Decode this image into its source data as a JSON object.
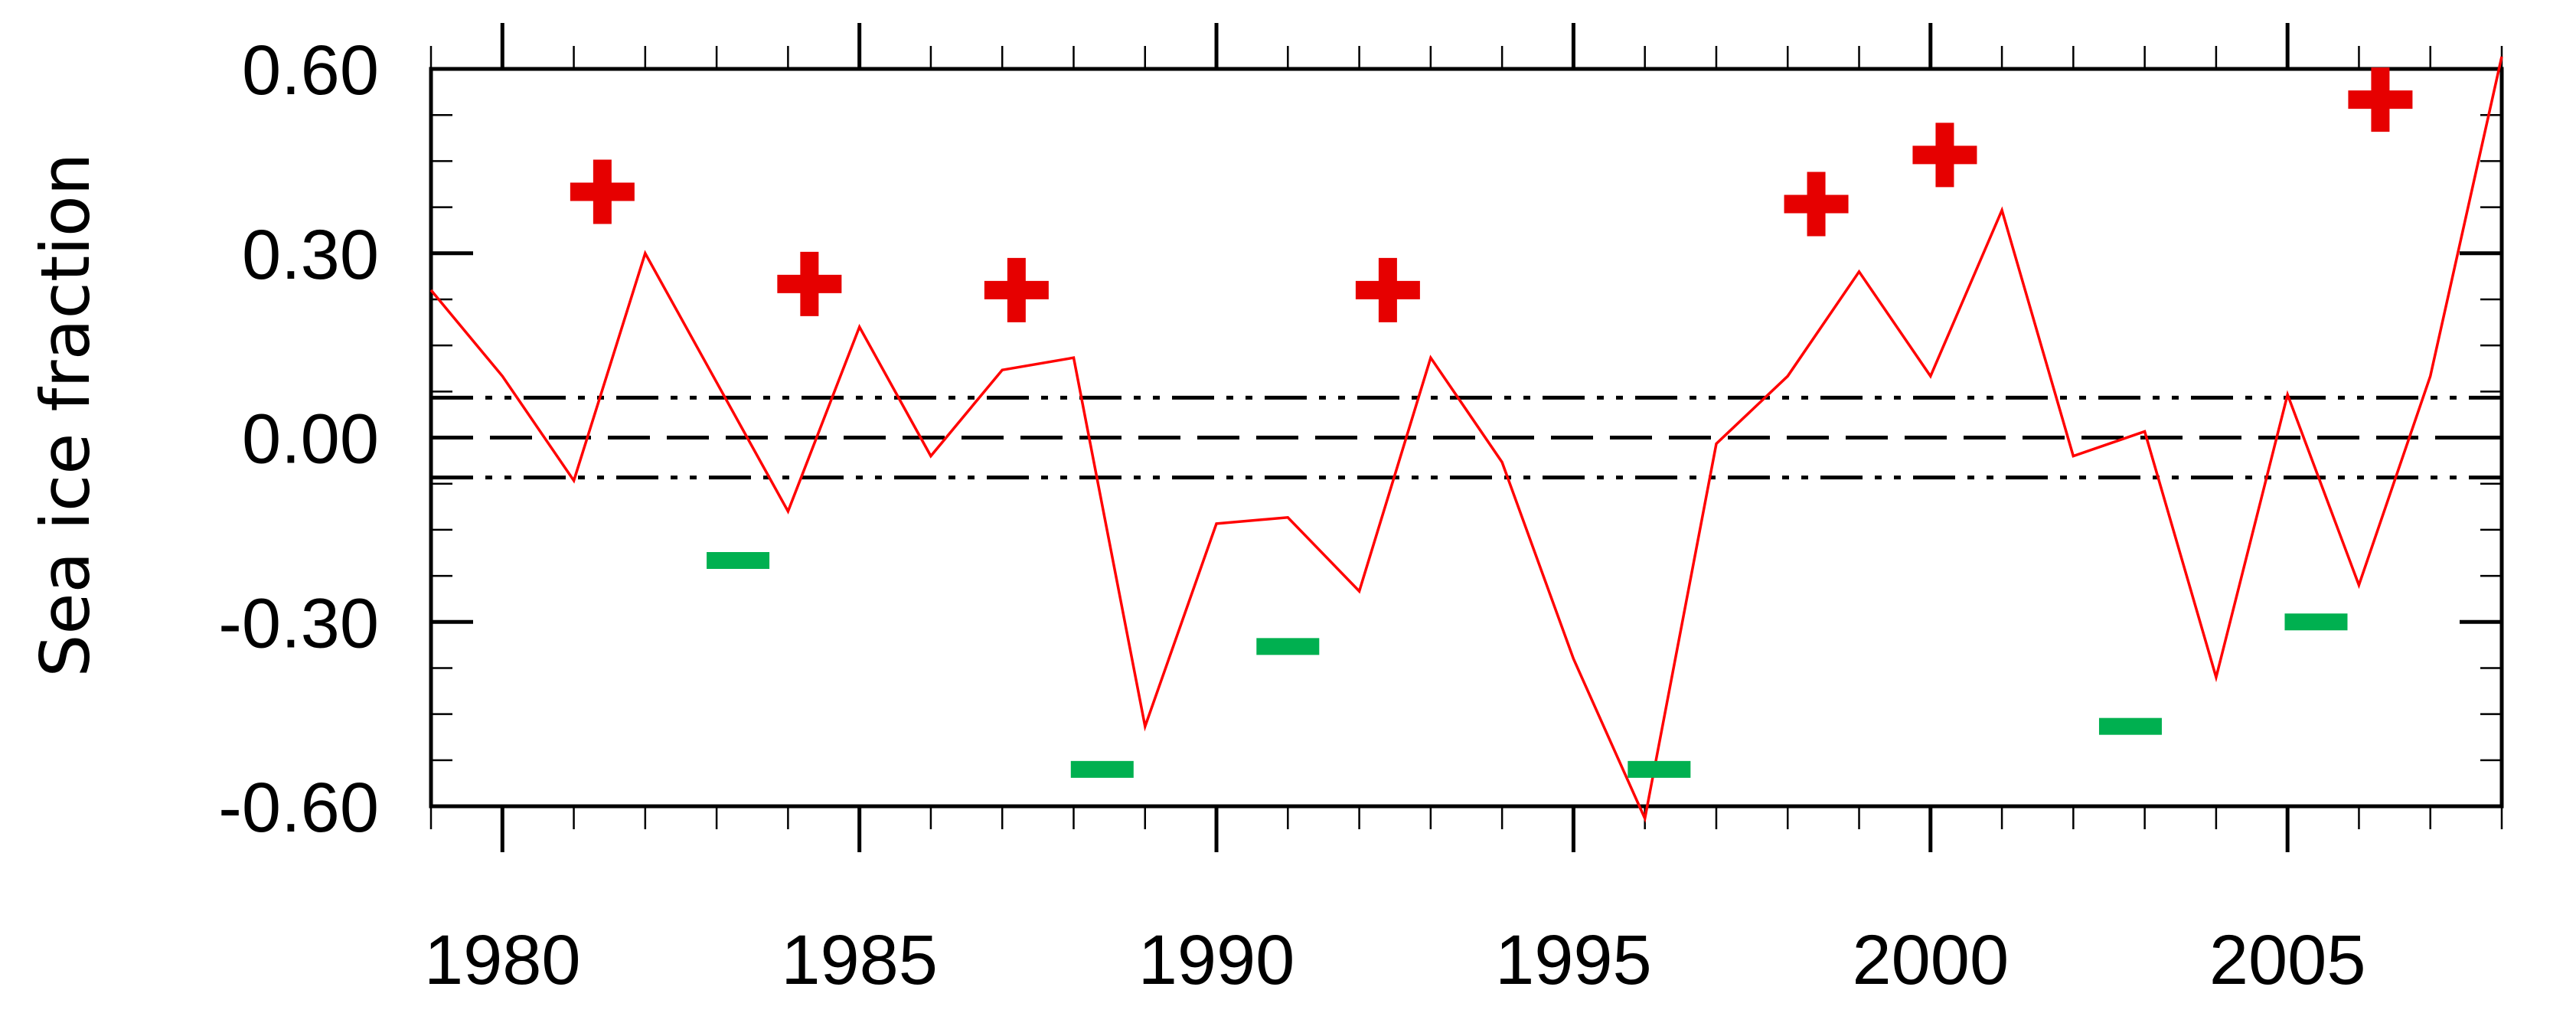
{
  "chart_data": {
    "type": "line",
    "title": "",
    "xlabel": "",
    "ylabel": "Sea ice fraction",
    "xlim": [
      1979,
      2008
    ],
    "ylim": [
      -0.6,
      0.6
    ],
    "grid": false,
    "x_ticks": [
      1980,
      1985,
      1990,
      1995,
      2000,
      2005
    ],
    "x_tick_labels": [
      "1980",
      "1985",
      "1990",
      "1995",
      "2000",
      "2005"
    ],
    "y_ticks": [
      0.6,
      0.3,
      0.0,
      -0.3,
      -0.6
    ],
    "y_tick_labels": [
      "0.60",
      "0.30",
      "0.00",
      "-0.30",
      "-0.60"
    ],
    "series": [
      {
        "color": "#ff0000",
        "x": [
          1979,
          1980,
          1981,
          1982,
          1983,
          1984,
          1985,
          1986,
          1987,
          1988,
          1989,
          1990,
          1991,
          1992,
          1993,
          1994,
          1995,
          1996,
          1997,
          1998,
          1999,
          2000,
          2001,
          2002,
          2003,
          2004,
          2005,
          2006,
          2007,
          2008
        ],
        "y": [
          0.24,
          0.1,
          -0.07,
          0.3,
          0.09,
          -0.12,
          0.18,
          -0.03,
          0.11,
          0.13,
          -0.47,
          -0.14,
          -0.13,
          -0.25,
          0.13,
          -0.04,
          -0.36,
          -0.62,
          -0.01,
          0.1,
          0.27,
          0.1,
          0.37,
          -0.03,
          0.01,
          -0.39,
          0.07,
          -0.24,
          0.1,
          0.62
        ]
      }
    ],
    "reference_lines": [
      {
        "y": 0.0,
        "style": "dashed",
        "color": "#000000"
      },
      {
        "y": 0.065,
        "style": "dash-dot-dot",
        "color": "#000000"
      },
      {
        "y": -0.065,
        "style": "dash-dot-dot",
        "color": "#000000"
      }
    ],
    "plus_markers": {
      "color": "#e60000",
      "x": [
        1981.4,
        1984.3,
        1987.2,
        1992.4,
        1998.4,
        2000.2,
        2006.3
      ],
      "y": [
        0.4,
        0.25,
        0.24,
        0.24,
        0.38,
        0.46,
        0.55
      ]
    },
    "minus_markers": {
      "color": "#00b050",
      "x": [
        1983.3,
        1988.4,
        1991.0,
        1996.2,
        2002.8,
        2005.4
      ],
      "y": [
        -0.2,
        -0.54,
        -0.34,
        -0.54,
        -0.47,
        -0.3
      ]
    }
  }
}
